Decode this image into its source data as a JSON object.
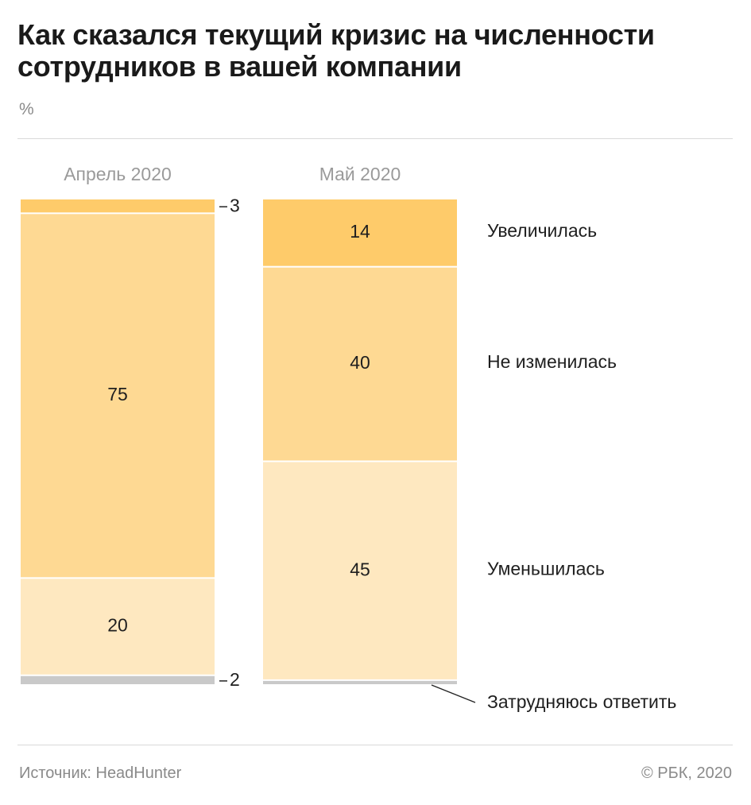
{
  "header": {
    "title": "Как сказался текущий кризис на численности сотрудников в вашей компании",
    "unit": "%"
  },
  "footer": {
    "source": "Источник: HeadHunter",
    "copyright": "© РБК, 2020"
  },
  "chart_data": {
    "type": "bar",
    "stacked": true,
    "categories": [
      "Апрель 2020",
      "Май 2020"
    ],
    "series": [
      {
        "name": "Увеличилась",
        "values": [
          3,
          14
        ],
        "value_labels": [
          "3",
          "14"
        ],
        "color": "#fecb6a"
      },
      {
        "name": "Не изменилась",
        "values": [
          75,
          40
        ],
        "value_labels": [
          "75",
          "40"
        ],
        "color": "#fed993"
      },
      {
        "name": "Уменьшилась",
        "values": [
          20,
          45
        ],
        "value_labels": [
          "20",
          "45"
        ],
        "color": "#fee8c0"
      },
      {
        "name": "Затрудняюсь ответить",
        "values": [
          2,
          1
        ],
        "value_labels": [
          "2",
          ""
        ],
        "color": "#c9c9c9"
      }
    ],
    "ylim": [
      0,
      100
    ],
    "legend_position": "right"
  }
}
